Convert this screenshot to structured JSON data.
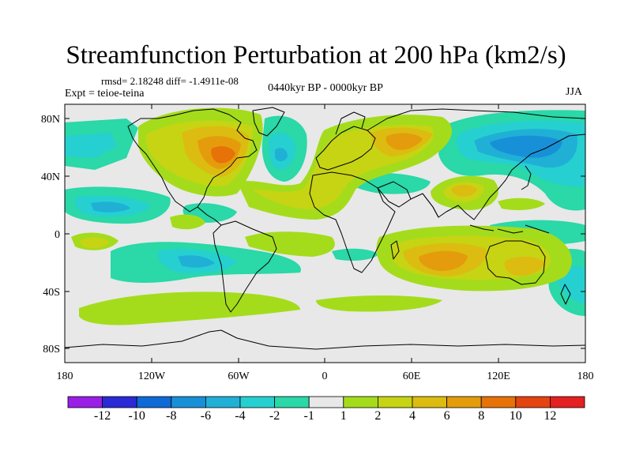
{
  "title": "Streamfunction Perturbation at 200 hPa (km2/s)",
  "stats_line": "rmsd= 2.18248 diff= -1.4911e-08",
  "experiment": "Expt = teioe-teina",
  "time_period": "0440kyr BP - 0000kyr BP",
  "season": "JJA",
  "lat_labels": [
    "80N",
    "40N",
    "0",
    "40S",
    "80S"
  ],
  "lon_labels": [
    "180",
    "120W",
    "60W",
    "0",
    "60E",
    "120E",
    "180"
  ],
  "colorbar": {
    "labels": [
      "-12",
      "-10",
      "-8",
      "-6",
      "-4",
      "-2",
      "-1",
      "1",
      "2",
      "4",
      "6",
      "8",
      "10",
      "12"
    ],
    "colors": [
      "#9a1fe6",
      "#2a2ad6",
      "#0f6ad8",
      "#1890d8",
      "#20b0d6",
      "#26d0d0",
      "#2ad8a8",
      "#e8e8e8",
      "#a4dc1c",
      "#c6d414",
      "#dcbc10",
      "#e49c0c",
      "#e67208",
      "#e44410",
      "#e42020"
    ]
  },
  "field": {
    "units": "km2/s",
    "colors": {
      "neutral": "#e8e8e8",
      "neg1": "#2ad8a8",
      "neg2": "#26d0d0",
      "neg4": "#20b0d6",
      "neg6": "#1890d8",
      "pos1": "#a4dc1c",
      "pos2": "#c6d414",
      "pos4": "#dcbc10",
      "pos6": "#e49c0c",
      "pos8": "#e67208"
    }
  }
}
